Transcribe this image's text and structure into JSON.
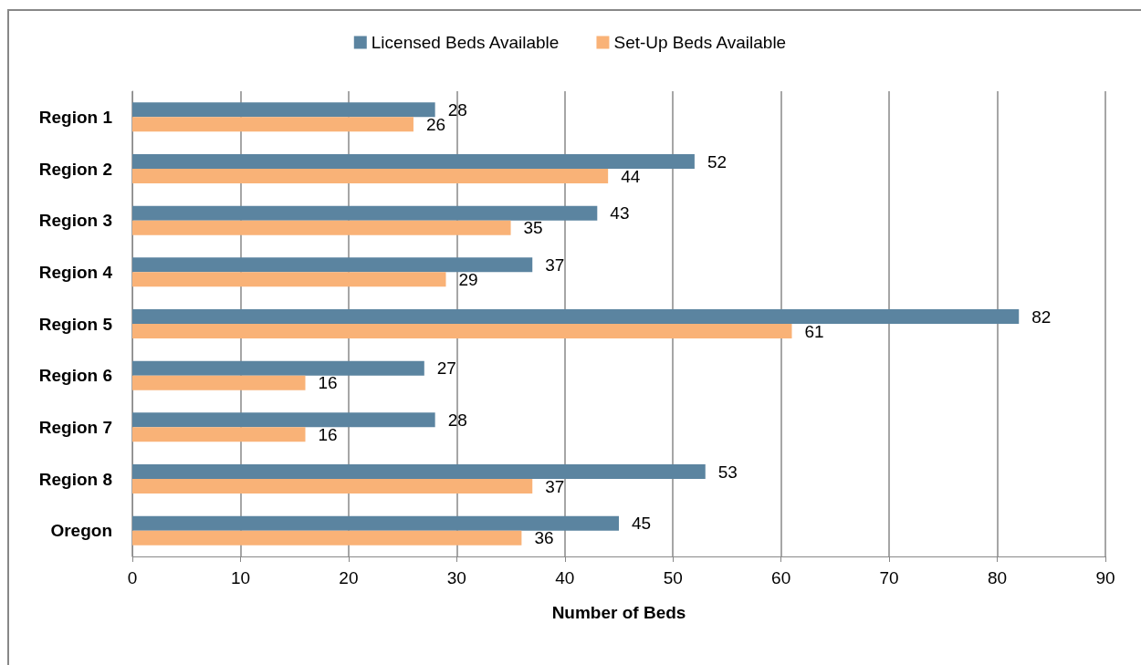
{
  "chart_data": {
    "type": "bar",
    "orientation": "horizontal",
    "xlabel": "Number of Beds",
    "categories": [
      "Region 1",
      "Region 2",
      "Region 3",
      "Region 4",
      "Region 5",
      "Region 6",
      "Region 7",
      "Region 8",
      "Oregon"
    ],
    "series": [
      {
        "name": "Licensed Beds Available",
        "color": "#5b84a0",
        "values": [
          28,
          52,
          43,
          37,
          82,
          27,
          28,
          53,
          45
        ]
      },
      {
        "name": "Set-Up Beds Available",
        "color": "#f9b277",
        "values": [
          26,
          44,
          35,
          29,
          61,
          16,
          16,
          37,
          36
        ]
      }
    ],
    "xlim": [
      0,
      90
    ],
    "xticks": [
      0,
      10,
      20,
      30,
      40,
      50,
      60,
      70,
      80,
      90
    ],
    "grid": "x",
    "legend": "top",
    "data_labels": true
  }
}
